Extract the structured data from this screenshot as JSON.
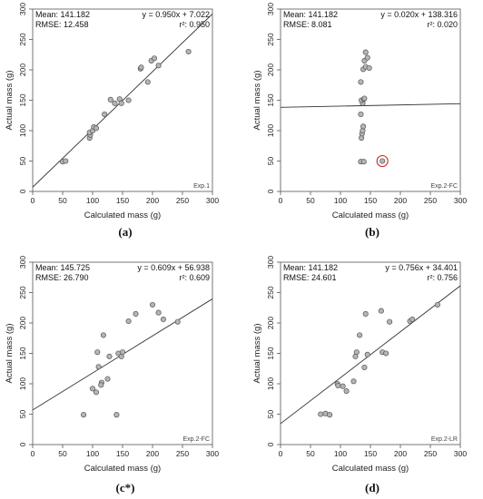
{
  "chart_data": [
    {
      "type": "scatter",
      "panel_label": "(a)",
      "tag": "Exp.1",
      "xlabel": "Calculated mass (g)",
      "ylabel": "Actual mass (g)",
      "xlim": [
        0,
        300
      ],
      "ylim": [
        0,
        300
      ],
      "ticks": [
        0,
        50,
        100,
        150,
        200,
        250,
        300
      ],
      "stats": {
        "mean": "Mean: 141.182",
        "rmse": "RMSE: 12.458",
        "equation": "y = 0.950x + 7.022",
        "r2": "r²: 0.950"
      },
      "fit": {
        "slope": 0.95,
        "intercept": 7.022
      },
      "points": [
        [
          50,
          49
        ],
        [
          55,
          50
        ],
        [
          95,
          88
        ],
        [
          96,
          93
        ],
        [
          95,
          97
        ],
        [
          100,
          100
        ],
        [
          102,
          106
        ],
        [
          106,
          104
        ],
        [
          120,
          127
        ],
        [
          130,
          151
        ],
        [
          137,
          145
        ],
        [
          145,
          152
        ],
        [
          148,
          145
        ],
        [
          160,
          150
        ],
        [
          180,
          202
        ],
        [
          181,
          204
        ],
        [
          192,
          180
        ],
        [
          198,
          215
        ],
        [
          203,
          219
        ],
        [
          210,
          207
        ],
        [
          260,
          230
        ]
      ],
      "highlight": []
    },
    {
      "type": "scatter",
      "panel_label": "(b)",
      "tag": "Exp.2-FC",
      "xlabel": "Calculated mass (g)",
      "ylabel": "Actual mass (g)",
      "xlim": [
        0,
        300
      ],
      "ylim": [
        0,
        300
      ],
      "ticks": [
        0,
        50,
        100,
        150,
        200,
        250,
        300
      ],
      "stats": {
        "mean": "Mean: 141.182",
        "rmse": "RMSE: 8.081",
        "equation": "y = 0.020x + 138.316",
        "r2": "r²: 0.020"
      },
      "fit": {
        "slope": 0.02,
        "intercept": 138.316
      },
      "points": [
        [
          134,
          49
        ],
        [
          139,
          49
        ],
        [
          135,
          88
        ],
        [
          136,
          95
        ],
        [
          137,
          100
        ],
        [
          138,
          107
        ],
        [
          134,
          127
        ],
        [
          137,
          145
        ],
        [
          135,
          150
        ],
        [
          139,
          152
        ],
        [
          140,
          153
        ],
        [
          134,
          180
        ],
        [
          138,
          201
        ],
        [
          142,
          205
        ],
        [
          140,
          215
        ],
        [
          145,
          220
        ],
        [
          142,
          229
        ],
        [
          148,
          203
        ],
        [
          170,
          50
        ]
      ],
      "highlight": [
        [
          170,
          50
        ]
      ]
    },
    {
      "type": "scatter",
      "panel_label": "(c*)",
      "tag": "Exp.2-FC",
      "xlabel": "Calculated mass (g)",
      "ylabel": "Actual mass (g)",
      "xlim": [
        0,
        300
      ],
      "ylim": [
        0,
        300
      ],
      "ticks": [
        0,
        50,
        100,
        150,
        200,
        250,
        300
      ],
      "stats": {
        "mean": "Mean: 145.725",
        "rmse": "RMSE: 26.790",
        "equation": "y = 0.609x + 56.938",
        "r2": "r²: 0.609"
      },
      "fit": {
        "slope": 0.609,
        "intercept": 56.938
      },
      "points": [
        [
          85,
          49
        ],
        [
          100,
          92
        ],
        [
          106,
          86
        ],
        [
          108,
          152
        ],
        [
          110,
          128
        ],
        [
          115,
          102
        ],
        [
          118,
          180
        ],
        [
          125,
          108
        ],
        [
          128,
          145
        ],
        [
          140,
          49
        ],
        [
          143,
          150
        ],
        [
          148,
          145
        ],
        [
          150,
          152
        ],
        [
          160,
          203
        ],
        [
          172,
          215
        ],
        [
          200,
          230
        ],
        [
          210,
          217
        ],
        [
          218,
          206
        ],
        [
          242,
          202
        ],
        [
          114,
          98
        ]
      ],
      "highlight": []
    },
    {
      "type": "scatter",
      "panel_label": "(d)",
      "tag": "Exp.2-LR",
      "xlabel": "Calculated mass (g)",
      "ylabel": "Actual mass (g)",
      "xlim": [
        0,
        300
      ],
      "ylim": [
        0,
        300
      ],
      "ticks": [
        0,
        50,
        100,
        150,
        200,
        250,
        300
      ],
      "stats": {
        "mean": "Mean: 141.182",
        "rmse": "RMSE: 24.601",
        "equation": "y = 0.756x + 34.401",
        "r2": "r²: 0.756"
      },
      "fit": {
        "slope": 0.756,
        "intercept": 34.401
      },
      "points": [
        [
          67,
          50
        ],
        [
          75,
          51
        ],
        [
          82,
          49
        ],
        [
          95,
          100
        ],
        [
          96,
          97
        ],
        [
          104,
          96
        ],
        [
          110,
          88
        ],
        [
          122,
          104
        ],
        [
          125,
          145
        ],
        [
          127,
          152
        ],
        [
          132,
          180
        ],
        [
          140,
          127
        ],
        [
          142,
          215
        ],
        [
          145,
          148
        ],
        [
          168,
          220
        ],
        [
          170,
          152
        ],
        [
          176,
          150
        ],
        [
          182,
          202
        ],
        [
          216,
          203
        ],
        [
          220,
          206
        ],
        [
          262,
          230
        ]
      ],
      "highlight": []
    }
  ]
}
